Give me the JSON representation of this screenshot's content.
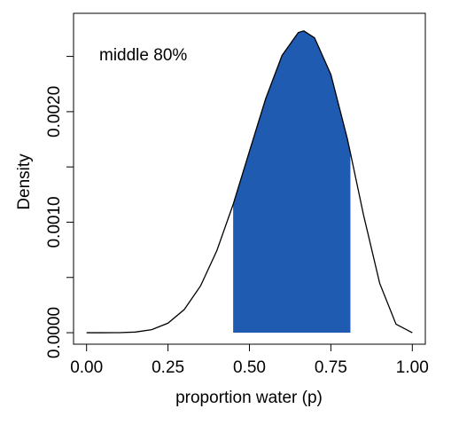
{
  "chart_data": {
    "type": "line",
    "annotation": "middle 80%",
    "xlabel": "proportion water (p)",
    "ylabel": "Density",
    "x": [
      0,
      0.05,
      0.1,
      0.15,
      0.2,
      0.25,
      0.3,
      0.35,
      0.4,
      0.45,
      0.5,
      0.55,
      0.6,
      0.65,
      0.667,
      0.7,
      0.75,
      0.8,
      0.81,
      0.85,
      0.9,
      0.95,
      1
    ],
    "series": [
      {
        "color": "#000000",
        "values": [
          0,
          0,
          6e-07,
          5.9e-06,
          2.75e-05,
          8.65e-05,
          0.00021,
          0.000424,
          0.000743,
          0.001161,
          0.001641,
          0.002119,
          0.002508,
          0.002716,
          0.002731,
          0.002668,
          0.002336,
          0.001762,
          0.001627,
          0.001069,
          0.000446,
          7.7e-05,
          0
        ]
      }
    ],
    "interval": [
      0.45,
      0.81
    ],
    "interval_color": "#1f5bb1",
    "xlim": [
      -0.04,
      1.04
    ],
    "ylim": [
      -0.000104,
      0.00289
    ],
    "xticks": [
      {
        "value": 0,
        "label": "0.00"
      },
      {
        "value": 0.25,
        "label": "0.25"
      },
      {
        "value": 0.5,
        "label": "0.50"
      },
      {
        "value": 0.75,
        "label": "0.75"
      },
      {
        "value": 1,
        "label": "1.00"
      }
    ],
    "yticks": [
      {
        "value": 0,
        "label": "0.0000"
      },
      {
        "value": 0.001,
        "label": "0.0010"
      },
      {
        "value": 0.002,
        "label": "0.0020"
      }
    ],
    "yticks_minor": [
      0.0005,
      0.0015,
      0.0025
    ]
  }
}
